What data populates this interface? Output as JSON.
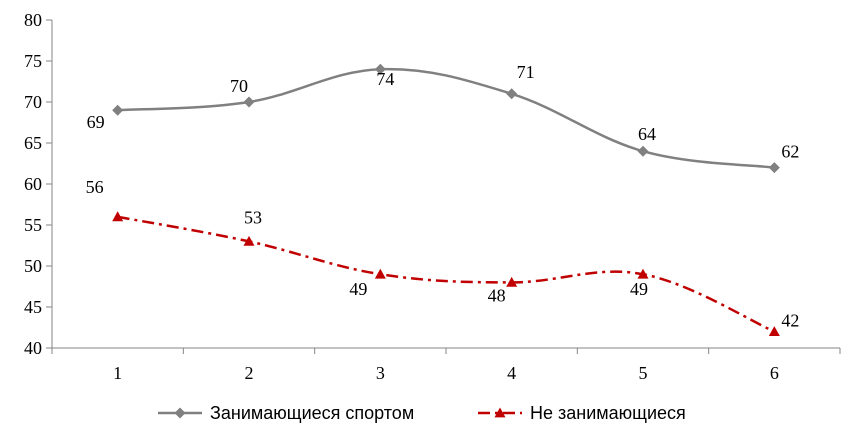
{
  "chart_data": {
    "type": "line",
    "categories": [
      "1",
      "2",
      "3",
      "4",
      "5",
      "6"
    ],
    "series": [
      {
        "name": "Занимающиеся спортом",
        "values": [
          69,
          70,
          74,
          71,
          64,
          62
        ],
        "color": "#808080",
        "marker": "diamond",
        "line_style": "solid",
        "smooth": true
      },
      {
        "name": "Не занимающиеся",
        "values": [
          56,
          53,
          49,
          48,
          49,
          42
        ],
        "color": "#C00000",
        "marker": "triangle",
        "line_style": "dash-dot",
        "smooth": true
      }
    ],
    "ylim": [
      40,
      80
    ],
    "yticks": [
      "40",
      "45",
      "50",
      "55",
      "60",
      "65",
      "70",
      "75",
      "80"
    ],
    "grid": false,
    "legend_position": "bottom"
  }
}
